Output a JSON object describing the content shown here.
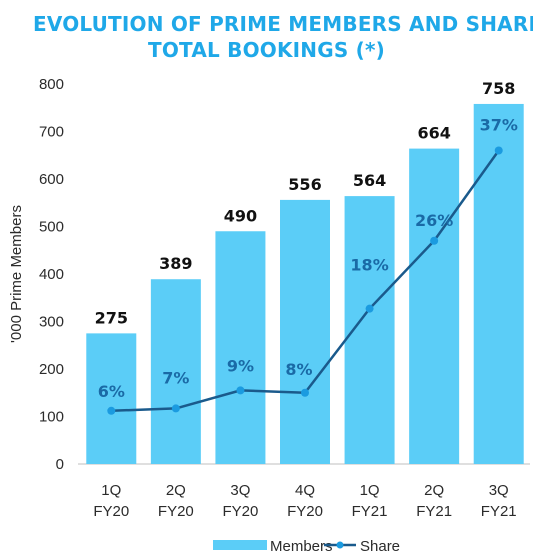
{
  "title": {
    "line1": "EVOLUTION OF PRIME MEMBERS AND SHARE O",
    "line2": "TOTAL BOOKINGS (*)"
  },
  "colors": {
    "title": "#1fa8e8",
    "bars": "#5bcdf7",
    "line": "#1a5a8c",
    "markers": "#1b9be0",
    "share_labels": "#1a6aa6",
    "bar_labels": "#111111",
    "axis": "#bfbfbf"
  },
  "chart_data": {
    "type": "bar",
    "categories": [
      [
        "1Q",
        "FY20"
      ],
      [
        "2Q",
        "FY20"
      ],
      [
        "3Q",
        "FY20"
      ],
      [
        "4Q",
        "FY20"
      ],
      [
        "1Q",
        "FY21"
      ],
      [
        "2Q",
        "FY21"
      ],
      [
        "3Q",
        "FY21"
      ]
    ],
    "series": [
      {
        "name": "Members",
        "type": "bar",
        "values": [
          275,
          389,
          490,
          556,
          564,
          664,
          758
        ],
        "labels": [
          "275",
          "389",
          "490",
          "556",
          "564",
          "664",
          "758"
        ]
      },
      {
        "name": "Share",
        "type": "line",
        "axis_values": [
          112,
          117,
          155,
          150,
          327,
          470,
          660
        ],
        "values_percent": [
          6,
          7,
          9,
          8,
          18,
          26,
          37
        ],
        "labels": [
          "6%",
          "7%",
          "9%",
          "8%",
          "18%",
          "26%",
          "37%"
        ]
      }
    ],
    "ylabel": "'000 Prime Members",
    "ylim": [
      0,
      800
    ],
    "yticks": [
      0,
      100,
      200,
      300,
      400,
      500,
      600,
      700,
      800
    ],
    "grid": false,
    "legend": {
      "position": "bottom",
      "entries": [
        "Members",
        "Share"
      ]
    }
  }
}
